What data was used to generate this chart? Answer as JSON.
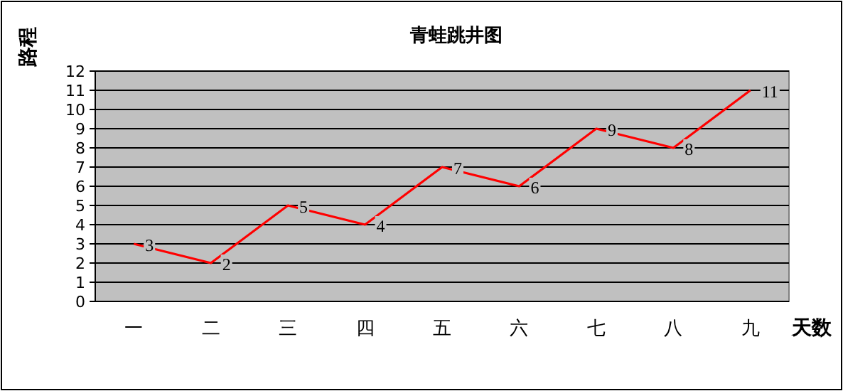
{
  "chart_data": {
    "type": "line",
    "title": "青蛙跳井图",
    "ylabel": "路程",
    "xlabel": "天数",
    "categories": [
      "一",
      "二",
      "三",
      "四",
      "五",
      "六",
      "七",
      "八",
      "九"
    ],
    "series": [
      {
        "color": "#ff0000",
        "values": [
          3,
          2,
          5,
          4,
          7,
          6,
          9,
          8,
          11
        ]
      }
    ],
    "ylim": [
      0,
      12
    ],
    "yticks": [
      0,
      1,
      2,
      3,
      4,
      5,
      6,
      7,
      8,
      9,
      10,
      11,
      12
    ],
    "grid": "y",
    "data_labels": true
  }
}
